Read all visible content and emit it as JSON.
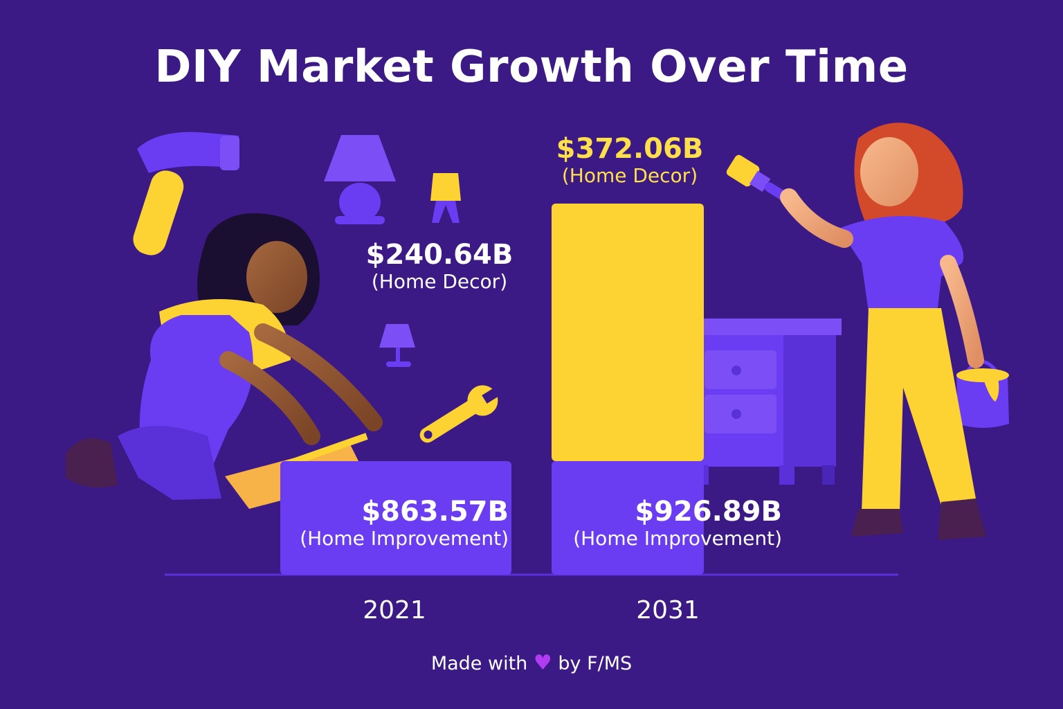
{
  "title": "DIY Market Growth Over Time",
  "footer": {
    "prefix": "Made with",
    "suffix": "by F/MS",
    "icon": "heart-icon",
    "icon_color": "#b03cf2"
  },
  "colors": {
    "background": "#3b1a86",
    "home_improvement": "#6a3df2",
    "home_decor": "#fdd233",
    "highlight_label": "#ffe04a",
    "text": "#ffffff"
  },
  "chart_data": {
    "type": "bar",
    "stacked": true,
    "title": "DIY Market Growth Over Time",
    "categories": [
      "2021",
      "2031"
    ],
    "series": [
      {
        "name": "Home Improvement",
        "values": [
          863.57,
          926.89
        ],
        "labels": [
          "$863.57B",
          "$926.89B"
        ],
        "sublabels": [
          "(Home Improvement)",
          "(Home Improvement)"
        ]
      },
      {
        "name": "Home Decor",
        "values": [
          240.64,
          372.06
        ],
        "labels": [
          "$240.64B",
          "$372.06B"
        ],
        "sublabels": [
          "(Home Decor)",
          "(Home Decor)"
        ]
      }
    ],
    "grid": false,
    "legend": "none"
  }
}
